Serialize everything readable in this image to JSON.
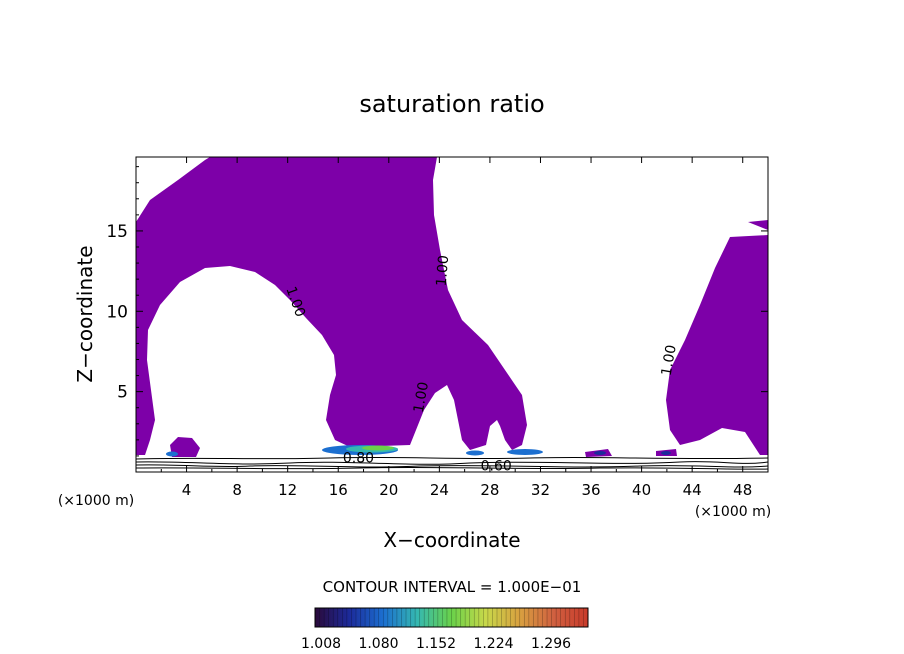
{
  "chart_data": {
    "type": "contour",
    "title": "saturation ratio",
    "xlabel": "X−coordinate",
    "ylabel": "Z−coordinate",
    "x_unit_left": "(×1000 m)",
    "x_unit_right": "(×1000 m)",
    "xlim": [
      0,
      50
    ],
    "ylim": [
      0,
      19.6
    ],
    "x_ticks": [
      4,
      8,
      12,
      16,
      20,
      24,
      28,
      32,
      36,
      40,
      44,
      48
    ],
    "x_tick_labels": [
      "4",
      "8",
      "12",
      "16",
      "20",
      "24",
      "28",
      "32",
      "36",
      "40",
      "44",
      "48"
    ],
    "y_ticks": [
      5,
      10,
      15
    ],
    "y_tick_labels": [
      "5",
      "10",
      "15"
    ],
    "contour_interval_text": "CONTOUR INTERVAL = 1.000E−01",
    "contour_labels": [
      {
        "text": "1.00",
        "x": 12.3,
        "y": 10.5,
        "angle": 70
      },
      {
        "text": "1.00",
        "x": 24.6,
        "y": 12.5,
        "angle": -85
      },
      {
        "text": "1.00",
        "x": 22.9,
        "y": 4.6,
        "angle": -80
      },
      {
        "text": "1.00",
        "x": 42.5,
        "y": 6.9,
        "angle": -80
      },
      {
        "text": "0.80",
        "x": 17.6,
        "y": 0.6,
        "angle": 0
      },
      {
        "text": "0.60",
        "x": 28.5,
        "y": 0.1,
        "angle": 0
      }
    ],
    "fill_color": "#7d00a8",
    "colorbar": {
      "tick_labels": [
        "1.008",
        "1.080",
        "1.152",
        "1.224",
        "1.296"
      ],
      "colors": [
        "#2a0a3a",
        "#1c2a9a",
        "#1c6fd0",
        "#35b8b0",
        "#6ad24a",
        "#c8d84a",
        "#d8a040",
        "#d06040",
        "#c83a2a"
      ]
    }
  }
}
